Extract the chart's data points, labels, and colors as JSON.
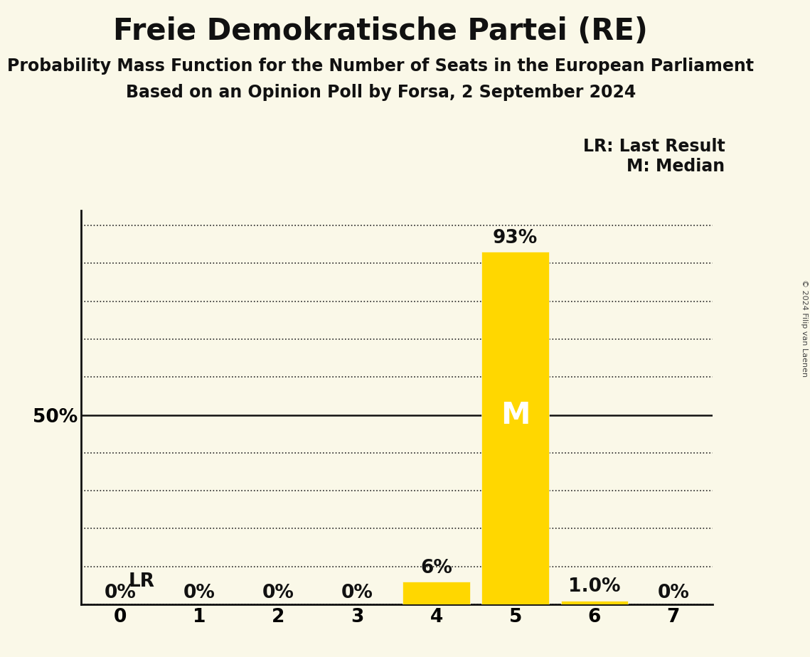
{
  "title": "Freie Demokratische Partei (RE)",
  "subtitle1": "Probability Mass Function for the Number of Seats in the European Parliament",
  "subtitle2": "Based on an Opinion Poll by Forsa, 2 September 2024",
  "copyright": "© 2024 Filip van Laenen",
  "seats": [
    0,
    1,
    2,
    3,
    4,
    5,
    6,
    7
  ],
  "probabilities": [
    0.0,
    0.0,
    0.0,
    0.0,
    0.06,
    0.93,
    0.01,
    0.0
  ],
  "bar_labels": [
    "0%",
    "0%",
    "0%",
    "0%",
    "6%",
    "93%",
    "1.0%",
    "0%"
  ],
  "bar_color": "#FFD700",
  "median": 5,
  "last_result": 0,
  "background_color": "#FAF8E8",
  "yticks": [
    0.0,
    0.1,
    0.2,
    0.3,
    0.4,
    0.5,
    0.6,
    0.7,
    0.8,
    0.9,
    1.0
  ],
  "ytick_labels": [
    "",
    "",
    "",
    "",
    "",
    "50%",
    "",
    "",
    "",
    "",
    ""
  ],
  "ylim": [
    0,
    1.04
  ],
  "xlim": [
    -0.5,
    7.5
  ],
  "legend_lr": "LR: Last Result",
  "legend_m": "M: Median",
  "title_fontsize": 30,
  "subtitle_fontsize": 17,
  "tick_fontsize": 19,
  "legend_fontsize": 17,
  "bar_label_fontsize": 19,
  "median_label_fontsize": 30
}
